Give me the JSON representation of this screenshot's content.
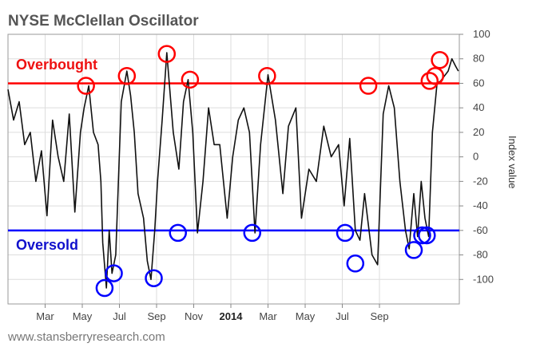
{
  "chart_data": {
    "type": "line",
    "title": "NYSE McClellan Oscillator",
    "ylabel": "Index value",
    "ylim": [
      -120,
      100
    ],
    "y_ticks": [
      100,
      80,
      60,
      40,
      20,
      0,
      -20,
      -40,
      -60,
      -80,
      -100
    ],
    "y_tick_labels": [
      "100",
      "80",
      "60",
      "40",
      "20",
      "0",
      "-20",
      "-40",
      "-60",
      "-80",
      "-100"
    ],
    "x_range": [
      0,
      24.3
    ],
    "x_unit": "months since Jan 2013",
    "x_ticks": [
      {
        "label": "Mar",
        "x": 2,
        "bold": false
      },
      {
        "label": "May",
        "x": 4,
        "bold": false
      },
      {
        "label": "Jul",
        "x": 6,
        "bold": false
      },
      {
        "label": "Sep",
        "x": 8,
        "bold": false
      },
      {
        "label": "Nov",
        "x": 10,
        "bold": false
      },
      {
        "label": "2014",
        "x": 12,
        "bold": true
      },
      {
        "label": "Mar",
        "x": 14,
        "bold": false
      },
      {
        "label": "May",
        "x": 16,
        "bold": false
      },
      {
        "label": "Jul",
        "x": 18,
        "bold": false
      },
      {
        "label": "Sep",
        "x": 20,
        "bold": false
      }
    ],
    "grid": true,
    "legend": "none",
    "reference_lines": [
      {
        "name": "Overbought",
        "y": 60,
        "color": "#ff0000"
      },
      {
        "name": "Oversold",
        "y": -60,
        "color": "#0000ff"
      }
    ],
    "series": [
      {
        "color": "#111111",
        "x": [
          0,
          0.3,
          0.6,
          0.9,
          1.2,
          1.5,
          1.8,
          2.1,
          2.4,
          2.7,
          3.0,
          3.3,
          3.6,
          3.9,
          4.1,
          4.35,
          4.6,
          4.85,
          5.0,
          5.1,
          5.3,
          5.45,
          5.6,
          5.8,
          6.1,
          6.4,
          6.6,
          6.8,
          7.0,
          7.3,
          7.5,
          7.7,
          7.9,
          8.05,
          8.3,
          8.55,
          8.9,
          9.2,
          9.45,
          9.7,
          9.95,
          10.2,
          10.5,
          10.8,
          11.1,
          11.4,
          11.8,
          12.1,
          12.4,
          12.7,
          13.0,
          13.3,
          13.6,
          14.0,
          14.4,
          14.8,
          15.1,
          15.5,
          15.8,
          16.2,
          16.6,
          17.0,
          17.4,
          17.8,
          18.1,
          18.4,
          18.7,
          18.95,
          19.2,
          19.6,
          19.9,
          20.2,
          20.5,
          20.8,
          21.1,
          21.4,
          21.6,
          21.85,
          22.05,
          22.25,
          22.45,
          22.65,
          22.85,
          23.1,
          23.3,
          23.5,
          23.7,
          23.9,
          24.1,
          24.25
        ],
        "values": [
          55,
          30,
          45,
          10,
          20,
          -20,
          5,
          -48,
          30,
          0,
          -20,
          35,
          -45,
          20,
          40,
          58,
          20,
          10,
          -20,
          -70,
          -107,
          -60,
          -95,
          -80,
          45,
          70,
          50,
          20,
          -30,
          -50,
          -85,
          -100,
          -60,
          -20,
          30,
          85,
          20,
          -10,
          45,
          63,
          20,
          -62,
          -20,
          40,
          10,
          10,
          -50,
          0,
          30,
          40,
          20,
          -62,
          10,
          67,
          30,
          -30,
          25,
          40,
          -50,
          -10,
          -20,
          25,
          0,
          10,
          -40,
          15,
          -60,
          -68,
          -30,
          -80,
          -88,
          35,
          58,
          40,
          -20,
          -60,
          -75,
          -30,
          -65,
          -20,
          -50,
          -65,
          20,
          60,
          62,
          66,
          70,
          80,
          74,
          70
        ]
      }
    ],
    "annotations": [
      {
        "label": "Overbought",
        "color": "#ee1111"
      },
      {
        "label": "Oversold",
        "color": "#1111cc"
      }
    ],
    "circles": [
      {
        "x": 4.2,
        "y": 58,
        "color": "#ff0000"
      },
      {
        "x": 6.4,
        "y": 66,
        "color": "#ff0000"
      },
      {
        "x": 8.55,
        "y": 84,
        "color": "#ff0000"
      },
      {
        "x": 9.8,
        "y": 63,
        "color": "#ff0000"
      },
      {
        "x": 13.95,
        "y": 66,
        "color": "#ff0000"
      },
      {
        "x": 19.4,
        "y": 58,
        "color": "#ff0000"
      },
      {
        "x": 22.7,
        "y": 62,
        "color": "#ff0000"
      },
      {
        "x": 23.0,
        "y": 66,
        "color": "#ff0000"
      },
      {
        "x": 23.25,
        "y": 79,
        "color": "#ff0000"
      },
      {
        "x": 5.2,
        "y": -107,
        "color": "#0000ff"
      },
      {
        "x": 5.7,
        "y": -95,
        "color": "#0000ff"
      },
      {
        "x": 7.85,
        "y": -99,
        "color": "#0000ff"
      },
      {
        "x": 9.15,
        "y": -62,
        "color": "#0000ff"
      },
      {
        "x": 13.15,
        "y": -62,
        "color": "#0000ff"
      },
      {
        "x": 18.15,
        "y": -62,
        "color": "#0000ff"
      },
      {
        "x": 18.7,
        "y": -87,
        "color": "#0000ff"
      },
      {
        "x": 21.85,
        "y": -76,
        "color": "#0000ff"
      },
      {
        "x": 22.3,
        "y": -64,
        "color": "#0000ff"
      },
      {
        "x": 22.55,
        "y": -64,
        "color": "#0000ff"
      }
    ]
  },
  "source": "www.stansberryresearch.com"
}
